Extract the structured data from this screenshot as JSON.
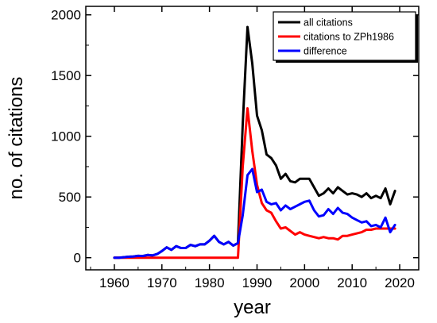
{
  "chart_data": {
    "type": "line",
    "title": "",
    "xlabel": "year",
    "ylabel": "no. of citations",
    "xlim": [
      1954,
      2024
    ],
    "ylim": [
      -100,
      2070
    ],
    "xticks": [
      1960,
      1970,
      1980,
      1990,
      2000,
      2010,
      2020
    ],
    "yticks": [
      0,
      500,
      1000,
      1500,
      2000
    ],
    "grid": false,
    "legend_position": "top-right",
    "series": [
      {
        "name": "all citations",
        "color": "#000000",
        "points": [
          [
            1960,
            0
          ],
          [
            1961,
            0
          ],
          [
            1962,
            4
          ],
          [
            1963,
            8
          ],
          [
            1964,
            10
          ],
          [
            1965,
            15
          ],
          [
            1966,
            14
          ],
          [
            1967,
            22
          ],
          [
            1968,
            18
          ],
          [
            1969,
            30
          ],
          [
            1970,
            55
          ],
          [
            1971,
            85
          ],
          [
            1972,
            65
          ],
          [
            1973,
            95
          ],
          [
            1974,
            80
          ],
          [
            1975,
            80
          ],
          [
            1976,
            105
          ],
          [
            1977,
            95
          ],
          [
            1978,
            110
          ],
          [
            1979,
            110
          ],
          [
            1980,
            140
          ],
          [
            1981,
            180
          ],
          [
            1982,
            130
          ],
          [
            1983,
            110
          ],
          [
            1984,
            130
          ],
          [
            1985,
            100
          ],
          [
            1986,
            120
          ],
          [
            1987,
            1100
          ],
          [
            1988,
            1900
          ],
          [
            1989,
            1600
          ],
          [
            1990,
            1170
          ],
          [
            1991,
            1050
          ],
          [
            1992,
            850
          ],
          [
            1993,
            820
          ],
          [
            1994,
            760
          ],
          [
            1995,
            650
          ],
          [
            1996,
            690
          ],
          [
            1997,
            630
          ],
          [
            1998,
            620
          ],
          [
            1999,
            650
          ],
          [
            2000,
            650
          ],
          [
            2001,
            650
          ],
          [
            2002,
            580
          ],
          [
            2003,
            510
          ],
          [
            2004,
            530
          ],
          [
            2005,
            570
          ],
          [
            2006,
            530
          ],
          [
            2007,
            580
          ],
          [
            2008,
            550
          ],
          [
            2009,
            520
          ],
          [
            2010,
            530
          ],
          [
            2011,
            520
          ],
          [
            2012,
            500
          ],
          [
            2013,
            530
          ],
          [
            2014,
            490
          ],
          [
            2015,
            510
          ],
          [
            2016,
            490
          ],
          [
            2017,
            570
          ],
          [
            2018,
            440
          ],
          [
            2019,
            550
          ]
        ]
      },
      {
        "name": "citations to ZPh1986",
        "color": "#ff0000",
        "points": [
          [
            1960,
            0
          ],
          [
            1986,
            0
          ],
          [
            1987,
            750
          ],
          [
            1988,
            1230
          ],
          [
            1989,
            880
          ],
          [
            1990,
            600
          ],
          [
            1991,
            450
          ],
          [
            1992,
            390
          ],
          [
            1993,
            370
          ],
          [
            1994,
            300
          ],
          [
            1995,
            240
          ],
          [
            1996,
            250
          ],
          [
            1997,
            220
          ],
          [
            1998,
            190
          ],
          [
            1999,
            210
          ],
          [
            2000,
            190
          ],
          [
            2001,
            180
          ],
          [
            2002,
            170
          ],
          [
            2003,
            160
          ],
          [
            2004,
            170
          ],
          [
            2005,
            160
          ],
          [
            2006,
            160
          ],
          [
            2007,
            150
          ],
          [
            2008,
            180
          ],
          [
            2009,
            180
          ],
          [
            2010,
            190
          ],
          [
            2011,
            200
          ],
          [
            2012,
            210
          ],
          [
            2013,
            230
          ],
          [
            2014,
            230
          ],
          [
            2015,
            240
          ],
          [
            2016,
            240
          ],
          [
            2017,
            240
          ],
          [
            2018,
            240
          ],
          [
            2019,
            240
          ]
        ]
      },
      {
        "name": "difference",
        "color": "#0000ff",
        "points": [
          [
            1960,
            0
          ],
          [
            1961,
            0
          ],
          [
            1962,
            4
          ],
          [
            1963,
            8
          ],
          [
            1964,
            10
          ],
          [
            1965,
            15
          ],
          [
            1966,
            14
          ],
          [
            1967,
            22
          ],
          [
            1968,
            18
          ],
          [
            1969,
            30
          ],
          [
            1970,
            55
          ],
          [
            1971,
            85
          ],
          [
            1972,
            65
          ],
          [
            1973,
            95
          ],
          [
            1974,
            80
          ],
          [
            1975,
            80
          ],
          [
            1976,
            105
          ],
          [
            1977,
            95
          ],
          [
            1978,
            110
          ],
          [
            1979,
            110
          ],
          [
            1980,
            140
          ],
          [
            1981,
            180
          ],
          [
            1982,
            130
          ],
          [
            1983,
            110
          ],
          [
            1984,
            130
          ],
          [
            1985,
            100
          ],
          [
            1986,
            120
          ],
          [
            1987,
            350
          ],
          [
            1988,
            680
          ],
          [
            1989,
            730
          ],
          [
            1990,
            540
          ],
          [
            1991,
            560
          ],
          [
            1992,
            460
          ],
          [
            1993,
            440
          ],
          [
            1994,
            450
          ],
          [
            1995,
            390
          ],
          [
            1996,
            430
          ],
          [
            1997,
            400
          ],
          [
            1998,
            420
          ],
          [
            1999,
            440
          ],
          [
            2000,
            460
          ],
          [
            2001,
            470
          ],
          [
            2002,
            390
          ],
          [
            2003,
            340
          ],
          [
            2004,
            350
          ],
          [
            2005,
            400
          ],
          [
            2006,
            360
          ],
          [
            2007,
            410
          ],
          [
            2008,
            370
          ],
          [
            2009,
            360
          ],
          [
            2010,
            330
          ],
          [
            2011,
            310
          ],
          [
            2012,
            290
          ],
          [
            2013,
            300
          ],
          [
            2014,
            260
          ],
          [
            2015,
            270
          ],
          [
            2016,
            250
          ],
          [
            2017,
            330
          ],
          [
            2018,
            210
          ],
          [
            2019,
            270
          ]
        ]
      }
    ]
  }
}
